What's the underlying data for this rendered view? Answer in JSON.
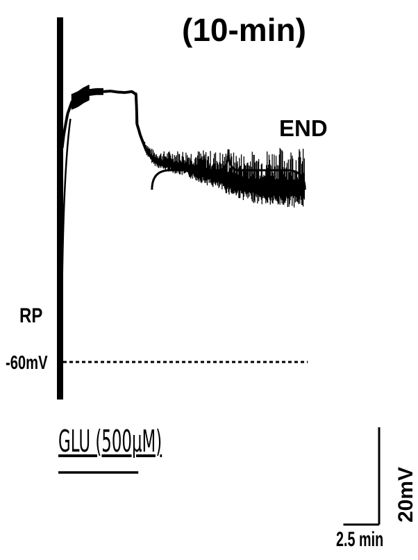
{
  "figure": {
    "title": "(10-min)",
    "end_label": "END",
    "rp_label": "RP",
    "rp_value": "-60mV",
    "stimulus_label": "GLU (500μM)",
    "voltage_scale_label": "20mV",
    "time_scale_label": "2.5 min"
  },
  "chart_data": {
    "type": "line",
    "title": "(10-min)",
    "xlabel": "",
    "ylabel": "",
    "x_unit": "min",
    "y_unit": "mV",
    "resting_potential_mV": -60,
    "stimulus": {
      "label": "GLU (500μM)",
      "start_min": 0,
      "end_min": 5.3
    },
    "annotations": [
      {
        "text": "END",
        "from_min": 6.4,
        "to_min": 17.1
      }
    ],
    "scale_bars": {
      "voltage_mV": 20,
      "time_min": 2.5
    },
    "series": [
      {
        "x": [
          0.0,
          0.05,
          0.12,
          0.25,
          0.5,
          0.8,
          1.2,
          1.6,
          2.0,
          2.5,
          3.0,
          3.5,
          4.0,
          4.5,
          5.0,
          5.3,
          5.35,
          5.6,
          6.0,
          6.5,
          7.0,
          8.0,
          9.0,
          10.0,
          11.0,
          12.0,
          13.0,
          14.0,
          15.0,
          16.0,
          17.1
        ],
        "y": [
          -60,
          -30,
          -16,
          -13,
          -9,
          -6.5,
          -6,
          -5.2,
          -4.6,
          -4.4,
          -4.4,
          -4.3,
          -4.5,
          -4.6,
          -4.4,
          -5.0,
          -11,
          -13.5,
          -16.5,
          -18.5,
          -19.2,
          -19.8,
          -20.5,
          -21.4,
          -22.3,
          -23.4,
          -24.2,
          -24.6,
          -24.8,
          -24.9,
          -25.0
        ]
      }
    ]
  }
}
